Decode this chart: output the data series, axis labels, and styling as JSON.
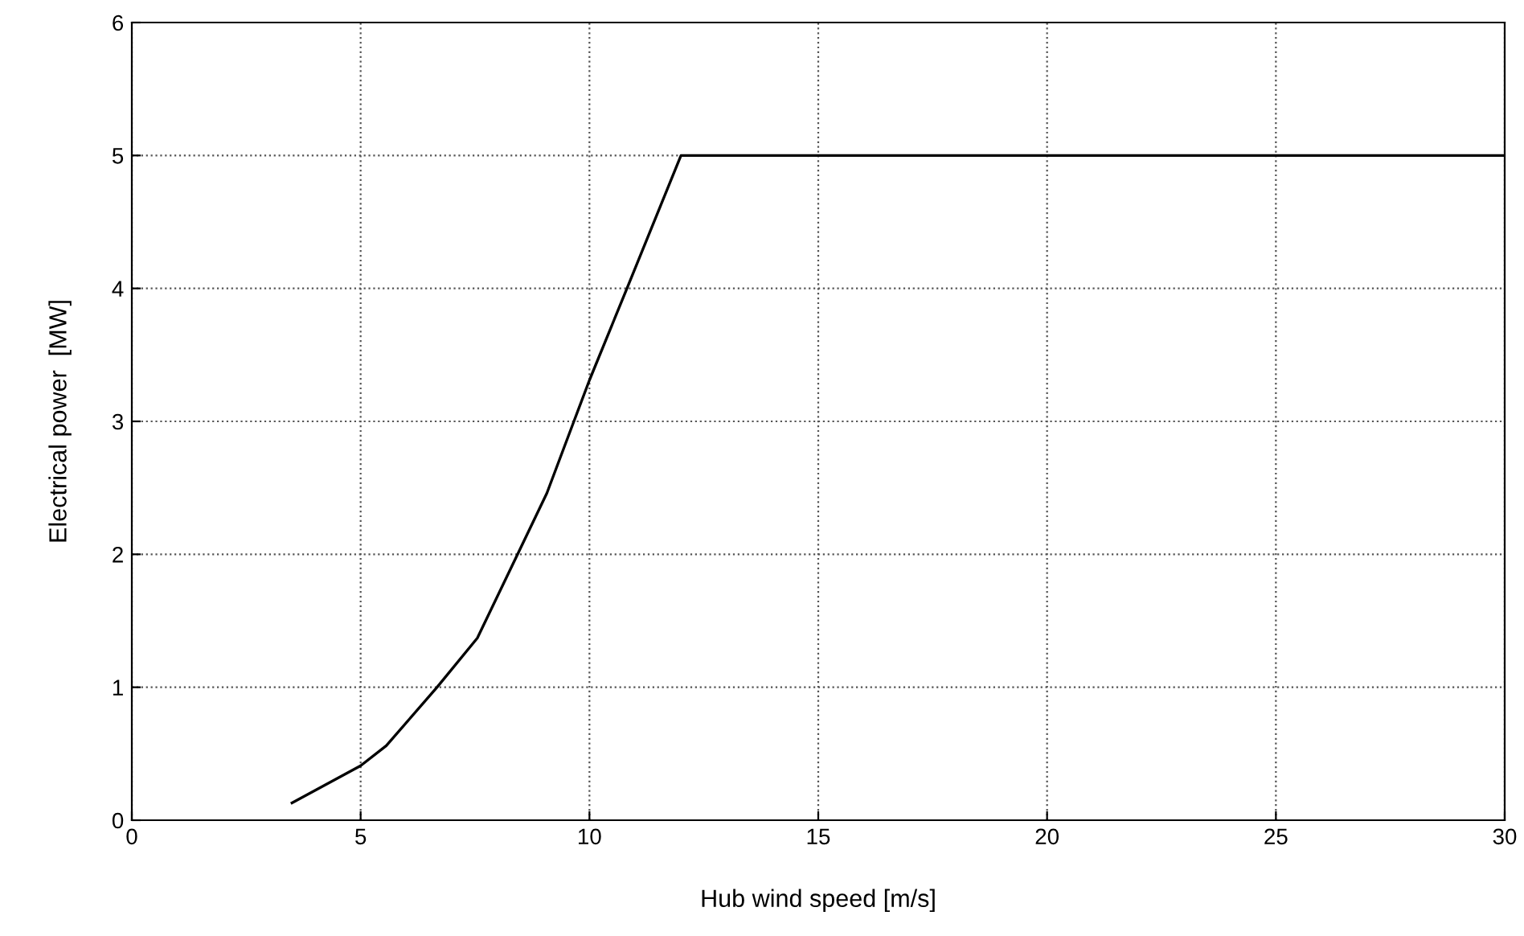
{
  "chart_data": {
    "type": "line",
    "xlabel": "Hub wind speed [m/s]",
    "ylabel": "Electrical power  [MW]",
    "series": [
      {
        "color": "#000000",
        "x": [
          3.5,
          5,
          5.56,
          6.67,
          7.55,
          8.43,
          9.07,
          9.66,
          10,
          10.82,
          12,
          30
        ],
        "values": [
          0.13,
          0.41,
          0.56,
          1.0,
          1.37,
          2.0,
          2.46,
          3.0,
          3.31,
          4.0,
          5,
          5
        ]
      }
    ],
    "xlim": [
      0,
      30
    ],
    "xticks": [
      0,
      5,
      10,
      15,
      20,
      25,
      30
    ],
    "ylim": [
      0,
      6
    ],
    "yticks": [
      0,
      1,
      2,
      3,
      4,
      5,
      6
    ],
    "grid": true,
    "legend": false,
    "marker": "none",
    "line_style": "solid"
  }
}
